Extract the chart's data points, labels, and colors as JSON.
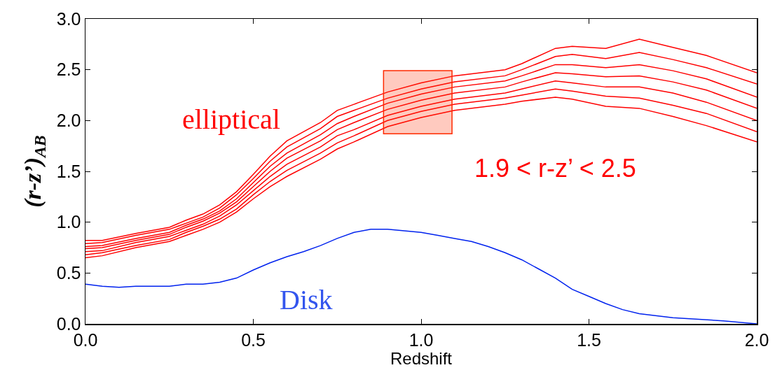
{
  "chart_data": {
    "type": "line",
    "xlabel": "Redshift",
    "ylabel": "(r-z’)$_{AB}$",
    "x": [
      0,
      0.05,
      0.15,
      0.25,
      0.3,
      0.35,
      0.4,
      0.45,
      0.5,
      0.55,
      0.6,
      0.7,
      0.75,
      0.8,
      0.9,
      1.0,
      1.1,
      1.25,
      1.3,
      1.4,
      1.45,
      1.55,
      1.65,
      1.75,
      1.85,
      2.0
    ],
    "series": [
      {
        "color": "#ff0000",
        "values": [
          0.82,
          0.82,
          0.89,
          0.95,
          1.02,
          1.08,
          1.17,
          1.3,
          1.47,
          1.65,
          1.8,
          1.98,
          2.1,
          2.16,
          2.28,
          2.37,
          2.44,
          2.5,
          2.56,
          2.71,
          2.73,
          2.71,
          2.8,
          2.72,
          2.64,
          2.47
        ]
      },
      {
        "color": "#ff0000",
        "values": [
          0.79,
          0.8,
          0.87,
          0.93,
          0.99,
          1.05,
          1.14,
          1.27,
          1.43,
          1.6,
          1.74,
          1.92,
          2.04,
          2.1,
          2.22,
          2.31,
          2.38,
          2.44,
          2.5,
          2.63,
          2.65,
          2.61,
          2.67,
          2.6,
          2.52,
          2.36
        ]
      },
      {
        "color": "#ff0000",
        "values": [
          0.76,
          0.77,
          0.84,
          0.9,
          0.97,
          1.03,
          1.11,
          1.23,
          1.39,
          1.55,
          1.68,
          1.86,
          1.97,
          2.04,
          2.17,
          2.26,
          2.33,
          2.39,
          2.44,
          2.55,
          2.55,
          2.52,
          2.55,
          2.49,
          2.41,
          2.23
        ]
      },
      {
        "color": "#ff0000",
        "values": [
          0.74,
          0.75,
          0.82,
          0.88,
          0.95,
          1.01,
          1.09,
          1.2,
          1.35,
          1.5,
          1.63,
          1.8,
          1.91,
          1.98,
          2.11,
          2.2,
          2.27,
          2.33,
          2.38,
          2.47,
          2.46,
          2.43,
          2.44,
          2.38,
          2.3,
          2.12
        ]
      },
      {
        "color": "#ff0000",
        "values": [
          0.71,
          0.72,
          0.8,
          0.86,
          0.92,
          0.98,
          1.06,
          1.17,
          1.31,
          1.45,
          1.57,
          1.74,
          1.85,
          1.91,
          2.05,
          2.14,
          2.21,
          2.27,
          2.31,
          2.39,
          2.37,
          2.33,
          2.33,
          2.27,
          2.18,
          2.0
        ]
      },
      {
        "color": "#ff0000",
        "values": [
          0.68,
          0.7,
          0.77,
          0.83,
          0.9,
          0.96,
          1.03,
          1.13,
          1.27,
          1.4,
          1.51,
          1.68,
          1.78,
          1.85,
          2.0,
          2.09,
          2.16,
          2.22,
          2.25,
          2.31,
          2.29,
          2.24,
          2.22,
          2.15,
          2.07,
          1.89
        ]
      },
      {
        "color": "#ff0000",
        "values": [
          0.65,
          0.67,
          0.75,
          0.81,
          0.87,
          0.93,
          1.0,
          1.1,
          1.23,
          1.35,
          1.45,
          1.62,
          1.72,
          1.79,
          1.94,
          2.03,
          2.1,
          2.16,
          2.19,
          2.23,
          2.21,
          2.14,
          2.12,
          2.04,
          1.95,
          1.79
        ]
      },
      {
        "color": "#0022ee",
        "x": [
          0,
          0.05,
          0.1,
          0.15,
          0.25,
          0.3,
          0.35,
          0.4,
          0.45,
          0.5,
          0.55,
          0.6,
          0.65,
          0.7,
          0.75,
          0.8,
          0.85,
          0.9,
          1.0,
          1.05,
          1.1,
          1.15,
          1.2,
          1.25,
          1.3,
          1.35,
          1.4,
          1.45,
          1.5,
          1.55,
          1.6,
          1.65,
          1.75,
          1.9,
          2.0
        ],
        "values": [
          0.39,
          0.37,
          0.36,
          0.37,
          0.37,
          0.39,
          0.39,
          0.41,
          0.45,
          0.53,
          0.6,
          0.66,
          0.71,
          0.77,
          0.84,
          0.9,
          0.93,
          0.93,
          0.9,
          0.87,
          0.84,
          0.81,
          0.76,
          0.7,
          0.63,
          0.54,
          0.45,
          0.34,
          0.27,
          0.2,
          0.14,
          0.1,
          0.06,
          0.03,
          0.0
        ]
      }
    ],
    "bands": [
      {
        "axis": "y",
        "from": 1.87,
        "to": 2.49,
        "color": "#ff2a00"
      }
    ],
    "annotations": [
      "elliptical",
      "Disk",
      "1.9 < r-z’ < 2.5"
    ],
    "xlim": [
      0,
      2.0
    ],
    "xticks": [
      {
        "value": 0,
        "label": "0.0"
      },
      0.5,
      {
        "value": 1,
        "label": "1.0"
      },
      1.5,
      {
        "value": 2,
        "label": "2.0"
      }
    ],
    "ylim": [
      0,
      3.0
    ],
    "yticks": [
      {
        "value": 0,
        "label": "0.0"
      },
      0.5,
      {
        "value": 1,
        "label": "1.0"
      },
      1.5,
      {
        "value": 2,
        "label": "2.0"
      },
      2.5,
      {
        "value": 3,
        "label": "3.0"
      }
    ],
    "grid": false
  }
}
